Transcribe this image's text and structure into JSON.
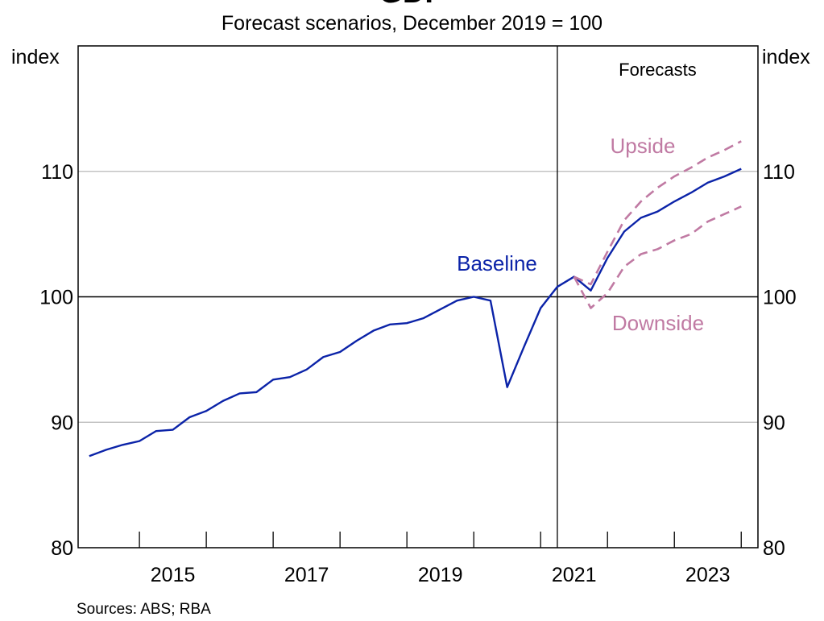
{
  "chart_data": {
    "type": "line",
    "title": "GDP",
    "subtitle": "Forecast scenarios, December 2019 = 100",
    "ylabel_left": "index",
    "ylabel_right": "index",
    "ylim": [
      80,
      120
    ],
    "yticks": [
      80,
      90,
      100,
      110
    ],
    "xlim": [
      "2014-01",
      "2024-03"
    ],
    "xticklabels": [
      "2015",
      "2017",
      "2019",
      "2021",
      "2023"
    ],
    "grid": true,
    "forecast_start": "2021-03",
    "forecast_label": "Forecasts",
    "series": [
      {
        "name": "Baseline",
        "color": "#0B23A8",
        "style": "solid",
        "x": [
          "2014-03",
          "2014-06",
          "2014-09",
          "2014-12",
          "2015-03",
          "2015-06",
          "2015-09",
          "2015-12",
          "2016-03",
          "2016-06",
          "2016-09",
          "2016-12",
          "2017-03",
          "2017-06",
          "2017-09",
          "2017-12",
          "2018-03",
          "2018-06",
          "2018-09",
          "2018-12",
          "2019-03",
          "2019-06",
          "2019-09",
          "2019-12",
          "2020-03",
          "2020-06",
          "2020-09",
          "2020-12",
          "2021-03",
          "2021-06",
          "2021-09",
          "2021-12",
          "2022-03",
          "2022-06",
          "2022-09",
          "2022-12",
          "2023-03",
          "2023-06",
          "2023-09",
          "2023-12"
        ],
        "values": [
          87.3,
          87.8,
          88.2,
          88.5,
          89.3,
          89.4,
          90.4,
          90.9,
          91.7,
          92.3,
          92.4,
          93.4,
          93.6,
          94.2,
          95.2,
          95.6,
          96.5,
          97.3,
          97.8,
          97.9,
          98.3,
          99.0,
          99.7,
          100.0,
          99.7,
          92.8,
          96.0,
          99.1,
          100.8,
          101.6,
          100.5,
          103.1,
          105.2,
          106.3,
          106.8,
          107.6,
          108.3,
          109.1,
          109.6,
          110.2
        ]
      },
      {
        "name": "Upside",
        "color": "#C07AA3",
        "style": "dashed",
        "x": [
          "2021-06",
          "2021-09",
          "2021-12",
          "2022-03",
          "2022-06",
          "2022-09",
          "2022-12",
          "2023-03",
          "2023-06",
          "2023-09",
          "2023-12"
        ],
        "values": [
          101.6,
          101.0,
          103.6,
          106.1,
          107.6,
          108.7,
          109.6,
          110.3,
          111.1,
          111.7,
          112.4
        ]
      },
      {
        "name": "Downside",
        "color": "#C07AA3",
        "style": "dashed",
        "x": [
          "2021-06",
          "2021-09",
          "2021-12",
          "2022-03",
          "2022-06",
          "2022-09",
          "2022-12",
          "2023-03",
          "2023-06",
          "2023-09",
          "2023-12"
        ],
        "values": [
          101.6,
          99.1,
          100.3,
          102.4,
          103.4,
          103.8,
          104.5,
          105.0,
          106.0,
          106.6,
          107.2
        ]
      }
    ]
  },
  "sources": "Sources: ABS; RBA"
}
